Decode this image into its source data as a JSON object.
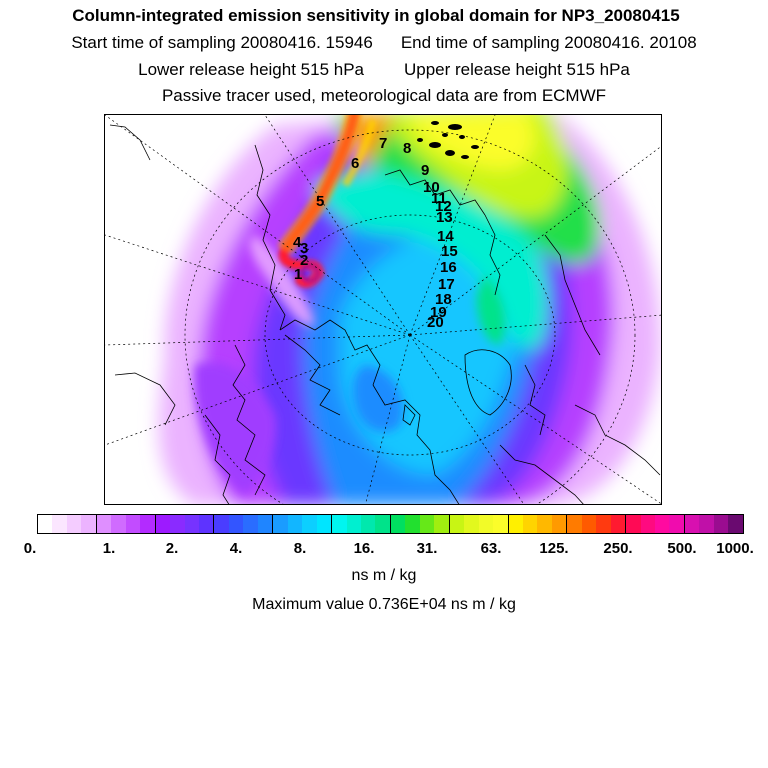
{
  "header": {
    "title": "Column-integrated emission sensitivity in global domain for NP3_20080415",
    "start_time": "Start time of sampling 20080416. 15946",
    "end_time": "End time of sampling 20080416. 20108",
    "lower_height": "Lower release height  515 hPa",
    "upper_height": "Upper release height  515 hPa",
    "note": "Passive tracer used, meteorological data are from ECMWF"
  },
  "map": {
    "track_labels": [
      "1",
      "2",
      "3",
      "4",
      "5",
      "6",
      "7",
      "8",
      "9",
      "10",
      "11",
      "12",
      "13",
      "14",
      "15",
      "16",
      "17",
      "18",
      "19",
      "20"
    ]
  },
  "legend": {
    "tick_labels": [
      "0.",
      "1.",
      "2.",
      "4.",
      "8.",
      "16.",
      "31.",
      "63.",
      "125.",
      "250.",
      "500.",
      "1000."
    ],
    "units": "ns m / kg",
    "max_value": "Maximum value  0.736E+04 ns m / kg",
    "colors": [
      "#ffffff",
      "#fbe6ff",
      "#f4ccff",
      "#ecb3ff",
      "#df8fff",
      "#d06bff",
      "#c24cff",
      "#b32bff",
      "#9d1aff",
      "#8a2bff",
      "#7633ff",
      "#5e33ff",
      "#4a3dff",
      "#3355ff",
      "#2a6dff",
      "#1f85ff",
      "#1a9cff",
      "#12b6ff",
      "#0ccfff",
      "#00e5ff",
      "#00f5f0",
      "#00efd0",
      "#00e8ad",
      "#00e38a",
      "#00df60",
      "#22e02f",
      "#66e818",
      "#a0ee10",
      "#c8f514",
      "#e2f81e",
      "#f2fb28",
      "#fbfd2a",
      "#fff000",
      "#ffd400",
      "#ffb800",
      "#ff9a00",
      "#ff7b00",
      "#ff5a00",
      "#ff3a10",
      "#ff1a30",
      "#ff0a55",
      "#ff0a80",
      "#ff0aa0",
      "#f00cae",
      "#d810b0",
      "#c010a8",
      "#9a0c90",
      "#6a0a70"
    ]
  }
}
